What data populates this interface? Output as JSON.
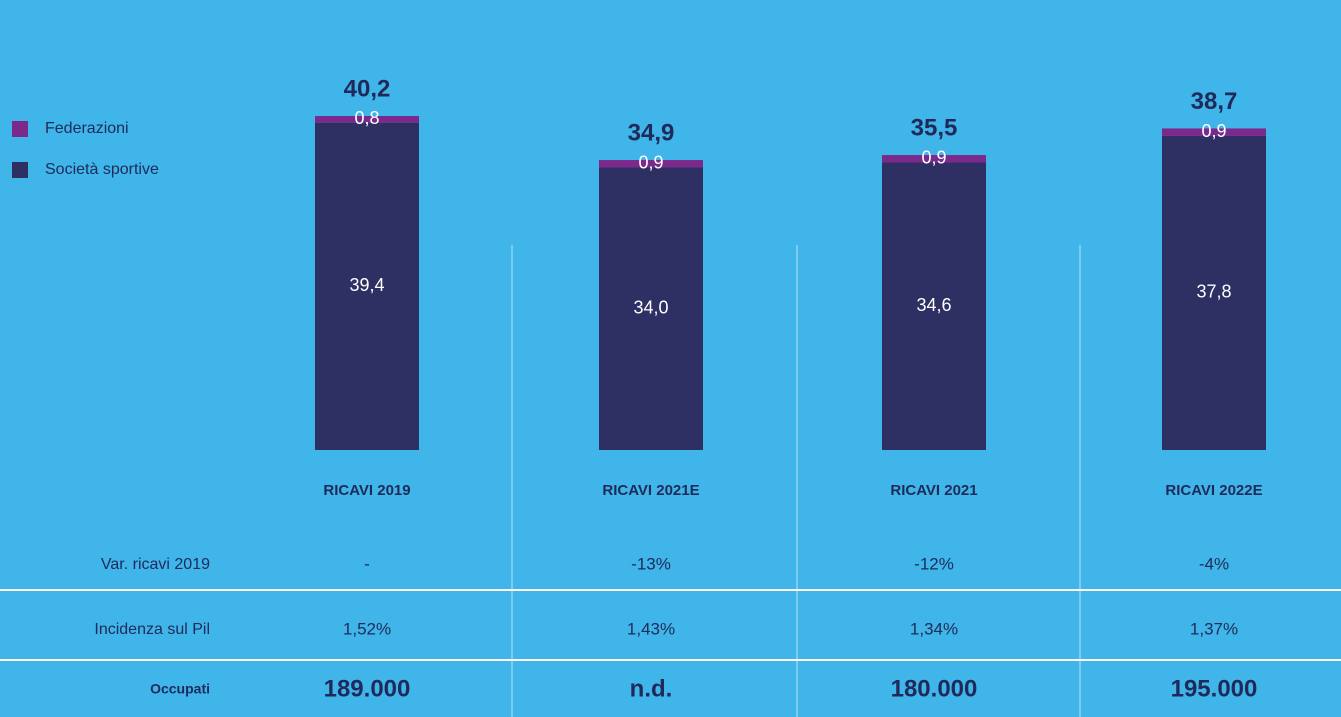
{
  "chart_data": {
    "type": "bar",
    "stacked": true,
    "categories": [
      "RICAVI 2019",
      "RICAVI 2021E",
      "RICAVI 2021",
      "RICAVI 2022E"
    ],
    "series": [
      {
        "name": "Società sportive",
        "color": "#2e2f63",
        "values": [
          39.4,
          34.0,
          34.6,
          37.8
        ],
        "value_labels": [
          "39,4",
          "34,0",
          "34,6",
          "37,8"
        ]
      },
      {
        "name": "Federazioni",
        "color": "#7b2a8c",
        "values": [
          0.8,
          0.9,
          0.9,
          0.9
        ],
        "value_labels": [
          "0,8",
          "0,9",
          "0,9",
          "0,9"
        ]
      }
    ],
    "totals": {
      "values": [
        40.2,
        34.9,
        35.5,
        38.7
      ],
      "value_labels": [
        "40,2",
        "34,9",
        "35,5",
        "38,7"
      ]
    },
    "legend": "top-left"
  },
  "table": {
    "rows": [
      {
        "label": "Var. ricavi 2019",
        "values": [
          "-",
          "-13%",
          "-12%",
          "-4%"
        ]
      },
      {
        "label": "Incidenza sul Pil",
        "values": [
          "1,52%",
          "1,43%",
          "1,34%",
          "1,37%"
        ]
      },
      {
        "label": "Occupati",
        "values": [
          "189.000",
          "n.d.",
          "180.000",
          "195.000"
        ]
      }
    ]
  }
}
